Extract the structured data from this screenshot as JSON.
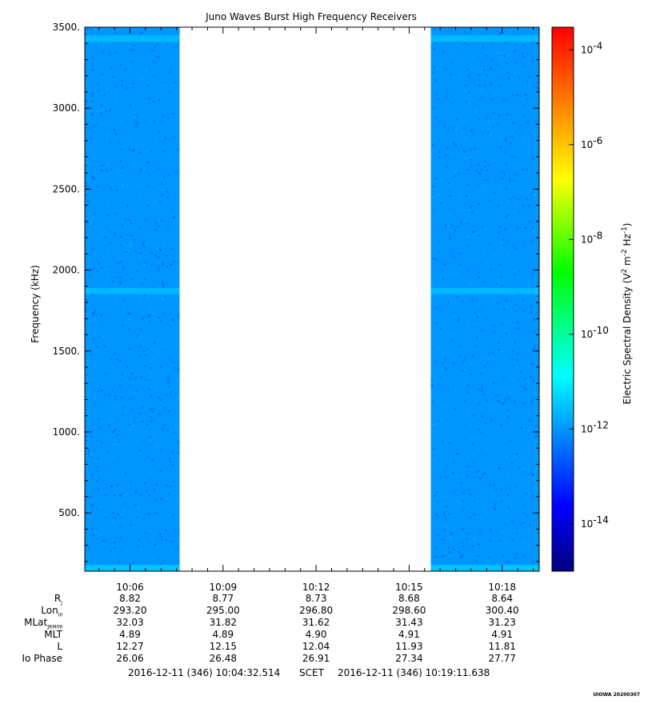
{
  "chart_data": {
    "type": "heatmap",
    "title": "Juno Waves Burst High Frequency Receivers",
    "ylabel": "Frequency (kHz)",
    "colorbar_label": "Electric Spectral Density (V^2 m^-2 Hz^-1)",
    "colorbar_label_parts": [
      "Electric Spectral Density (V",
      "2",
      " m",
      "-2",
      " Hz",
      "-1",
      ")"
    ],
    "colorbar_scale": "log",
    "colorbar_range": [
      1e-15,
      0.0003
    ],
    "colorbar_ticks": [
      {
        "base": "10",
        "exp": "-4",
        "value": 0.0001
      },
      {
        "base": "10",
        "exp": "-6",
        "value": 1e-06
      },
      {
        "base": "10",
        "exp": "-8",
        "value": 1e-08
      },
      {
        "base": "10",
        "exp": "-10",
        "value": 1e-10
      },
      {
        "base": "10",
        "exp": "-12",
        "value": 1e-12
      },
      {
        "base": "10",
        "exp": "-14",
        "value": 1e-14
      }
    ],
    "colormap": [
      "#00007f",
      "#0000ff",
      "#00ffff",
      "#00ff00",
      "#ffff00",
      "#ff7f00",
      "#ff0000"
    ],
    "y_range": [
      140,
      3500
    ],
    "y_ticks": [
      {
        "value": 500,
        "label": "500."
      },
      {
        "value": 1000,
        "label": "1000."
      },
      {
        "value": 1500,
        "label": "1500."
      },
      {
        "value": 2000,
        "label": "2000."
      },
      {
        "value": 2500,
        "label": "2500."
      },
      {
        "value": 3000,
        "label": "3000."
      },
      {
        "value": 3500,
        "label": "3500."
      }
    ],
    "x_range": [
      "10:04:32.514",
      "10:19:11.638"
    ],
    "x_range_minutes": [
      4.5419,
      19.194
    ],
    "x_ticks": [
      {
        "minute": 6,
        "label": "10:06"
      },
      {
        "minute": 9,
        "label": "10:09"
      },
      {
        "minute": 12,
        "label": "10:12"
      },
      {
        "minute": 15,
        "label": "10:15"
      },
      {
        "minute": 18,
        "label": "10:18"
      }
    ],
    "data_segments": [
      {
        "start": "10:04:32.514",
        "end": "10:07:36",
        "start_minute": 4.5419,
        "end_minute": 7.6,
        "background_density": 1e-12
      },
      {
        "start": "10:15:42",
        "end": "10:19:11.638",
        "start_minute": 15.7,
        "end_minute": 19.194,
        "background_density": 1e-12
      }
    ],
    "data_gap": {
      "start": "10:07:36",
      "end": "10:15:42"
    },
    "bands": [
      {
        "frequency_khz": 3430,
        "density": 3e-12
      },
      {
        "frequency_khz": 1870,
        "density": 3e-12
      },
      {
        "frequency_khz": 160,
        "density": 4e-12
      }
    ]
  },
  "ephemeris": {
    "rows": [
      {
        "label": "R",
        "sub": "J",
        "values": [
          "8.82",
          "8.77",
          "8.73",
          "8.68",
          "8.64"
        ]
      },
      {
        "label": "Lon",
        "sub": "III",
        "values": [
          "293.20",
          "295.00",
          "296.80",
          "298.60",
          "300.40"
        ]
      },
      {
        "label": "MLat",
        "sub": "JRM09",
        "values": [
          "32.03",
          "31.82",
          "31.62",
          "31.43",
          "31.23"
        ]
      },
      {
        "label": "MLT",
        "sub": "",
        "values": [
          "4.89",
          "4.89",
          "4.90",
          "4.91",
          "4.91"
        ]
      },
      {
        "label": "L",
        "sub": "",
        "values": [
          "12.27",
          "12.15",
          "12.04",
          "11.93",
          "11.81"
        ]
      },
      {
        "label": "Io Phase",
        "sub": "",
        "values": [
          "26.06",
          "26.48",
          "26.91",
          "27.34",
          "27.77"
        ]
      }
    ]
  },
  "scet": {
    "start": "2016-12-11 (346) 10:04:32.514",
    "label": "SCET",
    "end": "2016-12-11 (346) 10:19:11.638"
  },
  "stamp": "UIOWA 20200307"
}
